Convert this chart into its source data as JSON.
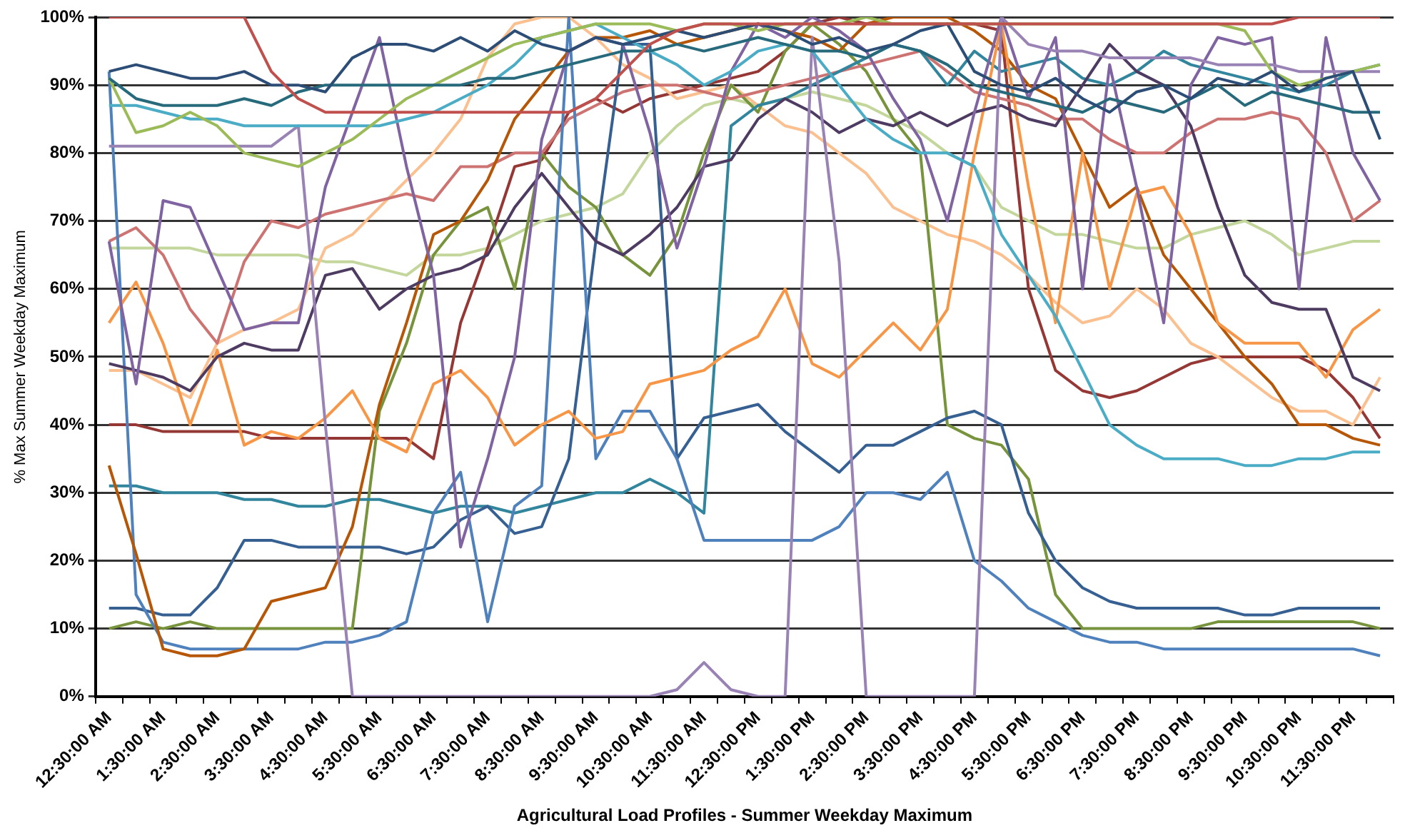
{
  "chart_data": {
    "type": "line",
    "xlabel": "Agricultural Load Profiles - Summer Weekday Maximum",
    "ylabel": "% Max Summer Weekday Maximum",
    "categories": [
      "12:30:00 AM",
      null,
      "1:30:00 AM",
      null,
      "2:30:00 AM",
      null,
      "3:30:00 AM",
      null,
      "4:30:00 AM",
      null,
      "5:30:00 AM",
      null,
      "6:30:00 AM",
      null,
      "7:30:00 AM",
      null,
      "8:30:00 AM",
      null,
      "9:30:00 AM",
      null,
      "10:30:00 AM",
      null,
      "11:30:00 AM",
      null,
      "12:30:00 PM",
      null,
      "1:30:00 PM",
      null,
      "2:30:00 PM",
      null,
      "3:30:00 PM",
      null,
      "4:30:00 PM",
      null,
      "5:30:00 PM",
      null,
      "6:30:00 PM",
      null,
      "7:30:00 PM",
      null,
      "8:30:00 PM",
      null,
      "9:30:00 PM",
      null,
      "10:30:00 PM",
      null,
      "11:30:00 PM",
      null
    ],
    "ylim": [
      0,
      100
    ],
    "yticks": [
      {
        "value": 0,
        "label": "0%"
      },
      {
        "value": 10,
        "label": "10%"
      },
      {
        "value": 20,
        "label": "20%"
      },
      {
        "value": 30,
        "label": "30%"
      },
      {
        "value": 40,
        "label": "40%"
      },
      {
        "value": 50,
        "label": "50%"
      },
      {
        "value": 60,
        "label": "60%"
      },
      {
        "value": 70,
        "label": "70%"
      },
      {
        "value": 80,
        "label": "80%"
      },
      {
        "value": 90,
        "label": "90%"
      },
      {
        "value": 100,
        "label": "100%"
      }
    ],
    "grid": "y",
    "marker": "none",
    "line_style": "solid",
    "series": [
      {
        "color": "#c0504d",
        "values": [
          100,
          100,
          100,
          100,
          100,
          100,
          92,
          88,
          86,
          86,
          86,
          86,
          86,
          86,
          86,
          86,
          86,
          86,
          88,
          92,
          96,
          98,
          99,
          99,
          99,
          99,
          99,
          99,
          99,
          99,
          99,
          99,
          99,
          99,
          99,
          99,
          99,
          99,
          99,
          99,
          99,
          99,
          99,
          99,
          100,
          100,
          100,
          100
        ]
      },
      {
        "color": "#2c4d75",
        "values": [
          92,
          93,
          92,
          91,
          91,
          92,
          90,
          90,
          89,
          94,
          96,
          96,
          95,
          97,
          95,
          98,
          96,
          95,
          97,
          96,
          97,
          98,
          97,
          98,
          99,
          98,
          96,
          97,
          95,
          96,
          98,
          99,
          92,
          90,
          89,
          91,
          88,
          86,
          89,
          90,
          88,
          91,
          90,
          92,
          89,
          91,
          92,
          82
        ]
      },
      {
        "color": "#276a7c",
        "values": [
          91,
          88,
          87,
          87,
          87,
          88,
          87,
          89,
          90,
          90,
          90,
          90,
          90,
          90,
          91,
          91,
          92,
          93,
          94,
          95,
          95,
          96,
          95,
          96,
          97,
          96,
          95,
          95,
          94,
          96,
          95,
          93,
          90,
          89,
          88,
          87,
          86,
          88,
          87,
          86,
          88,
          90,
          87,
          89,
          88,
          87,
          86,
          86
        ]
      },
      {
        "color": "#9bbb59",
        "values": [
          91,
          83,
          84,
          86,
          84,
          80,
          79,
          78,
          80,
          82,
          85,
          88,
          90,
          92,
          94,
          96,
          97,
          98,
          99,
          99,
          99,
          98,
          99,
          99,
          98,
          99,
          99,
          99,
          100,
          99,
          99,
          99,
          99,
          99,
          99,
          99,
          99,
          99,
          99,
          99,
          99,
          99,
          98,
          92,
          90,
          91,
          92,
          93
        ]
      },
      {
        "color": "#4bacc6",
        "values": [
          87,
          87,
          86,
          85,
          85,
          84,
          84,
          84,
          84,
          84,
          84,
          85,
          86,
          88,
          90,
          93,
          97,
          98,
          99,
          97,
          95,
          93,
          90,
          92,
          95,
          96,
          95,
          90,
          85,
          82,
          80,
          80,
          78,
          68,
          62,
          56,
          48,
          40,
          37,
          35,
          35,
          35,
          34,
          34,
          35,
          35,
          36,
          36
        ]
      },
      {
        "color": "#9983b5",
        "values": [
          81,
          81,
          81,
          81,
          81,
          81,
          81,
          84,
          40,
          0,
          0,
          0,
          0,
          0,
          0,
          0,
          0,
          0,
          0,
          0,
          0,
          1,
          5,
          1,
          0,
          0,
          97,
          64,
          0,
          0,
          0,
          0,
          0,
          100,
          96,
          95,
          95,
          94,
          94,
          94,
          94,
          93,
          93,
          93,
          92,
          92,
          92,
          92
        ]
      },
      {
        "color": "#8064a2",
        "values": [
          67,
          46,
          73,
          72,
          63,
          54,
          55,
          55,
          75,
          86,
          97,
          78,
          62,
          22,
          35,
          50,
          82,
          95,
          97,
          96,
          83,
          66,
          78,
          92,
          99,
          97,
          100,
          98,
          95,
          88,
          82,
          70,
          86,
          100,
          88,
          97,
          60,
          93,
          75,
          55,
          90,
          97,
          96,
          97,
          60,
          97,
          80,
          73
        ]
      },
      {
        "color": "#4d3b62",
        "values": [
          49,
          48,
          47,
          45,
          50,
          52,
          51,
          51,
          62,
          63,
          57,
          60,
          62,
          63,
          65,
          72,
          77,
          72,
          67,
          65,
          68,
          72,
          78,
          79,
          85,
          88,
          86,
          83,
          85,
          84,
          86,
          84,
          86,
          87,
          85,
          84,
          90,
          96,
          92,
          90,
          84,
          72,
          62,
          58,
          57,
          57,
          47,
          45
        ]
      },
      {
        "color": "#f79646",
        "values": [
          55,
          61,
          52,
          40,
          51,
          37,
          39,
          38,
          41,
          45,
          38,
          36,
          46,
          48,
          44,
          37,
          40,
          42,
          38,
          39,
          46,
          47,
          48,
          51,
          53,
          60,
          49,
          47,
          51,
          55,
          51,
          57,
          80,
          99,
          75,
          55,
          80,
          60,
          74,
          75,
          68,
          55,
          52,
          52,
          52,
          47,
          54,
          57
        ]
      },
      {
        "color": "#b65708",
        "values": [
          34,
          21,
          7,
          6,
          6,
          7,
          14,
          15,
          16,
          25,
          43,
          55,
          68,
          70,
          76,
          85,
          90,
          95,
          97,
          97,
          98,
          96,
          97,
          98,
          99,
          98,
          97,
          95,
          99,
          100,
          100,
          100,
          98,
          95,
          90,
          88,
          80,
          72,
          75,
          65,
          60,
          55,
          50,
          46,
          40,
          40,
          38,
          37
        ]
      },
      {
        "color": "#4f81bd",
        "values": [
          92,
          15,
          8,
          7,
          7,
          7,
          7,
          7,
          8,
          8,
          9,
          11,
          27,
          33,
          11,
          28,
          31,
          100,
          35,
          42,
          42,
          35,
          23,
          23,
          23,
          23,
          23,
          25,
          30,
          30,
          29,
          33,
          20,
          17,
          13,
          11,
          9,
          8,
          8,
          7,
          7,
          7,
          7,
          7,
          7,
          7,
          7,
          6
        ]
      },
      {
        "color": "#376092",
        "values": [
          13,
          13,
          12,
          12,
          16,
          23,
          23,
          22,
          22,
          22,
          22,
          21,
          22,
          26,
          28,
          24,
          25,
          35,
          67,
          96,
          96,
          35,
          41,
          42,
          43,
          39,
          36,
          33,
          37,
          37,
          39,
          41,
          42,
          40,
          27,
          20,
          16,
          14,
          13,
          13,
          13,
          13,
          12,
          12,
          13,
          13,
          13,
          13
        ]
      },
      {
        "color": "#31859c",
        "values": [
          31,
          31,
          30,
          30,
          30,
          29,
          29,
          28,
          28,
          29,
          29,
          28,
          27,
          28,
          28,
          27,
          28,
          29,
          30,
          30,
          32,
          30,
          27,
          84,
          87,
          88,
          90,
          92,
          94,
          96,
          95,
          90,
          95,
          92,
          93,
          94,
          91,
          90,
          92,
          95,
          93,
          92,
          91,
          90,
          89,
          90,
          92,
          93
        ]
      },
      {
        "color": "#cd7371",
        "values": [
          67,
          69,
          65,
          57,
          52,
          64,
          70,
          69,
          71,
          72,
          73,
          74,
          73,
          78,
          78,
          80,
          80,
          85,
          87,
          89,
          90,
          90,
          89,
          88,
          89,
          90,
          91,
          92,
          93,
          94,
          95,
          92,
          89,
          88,
          87,
          85,
          85,
          82,
          80,
          80,
          83,
          85,
          85,
          86,
          85,
          80,
          70,
          73
        ]
      },
      {
        "color": "#77933c",
        "values": [
          10,
          11,
          10,
          11,
          10,
          10,
          10,
          10,
          10,
          10,
          42,
          52,
          65,
          70,
          72,
          60,
          80,
          75,
          72,
          65,
          62,
          68,
          80,
          90,
          86,
          95,
          99,
          96,
          92,
          85,
          80,
          40,
          38,
          37,
          32,
          15,
          10,
          10,
          10,
          10,
          10,
          11,
          11,
          11,
          11,
          11,
          11,
          10
        ]
      },
      {
        "color": "#fac090",
        "values": [
          48,
          48,
          46,
          44,
          52,
          54,
          55,
          57,
          66,
          68,
          72,
          76,
          80,
          85,
          94,
          99,
          100,
          100,
          97,
          93,
          91,
          88,
          89,
          90,
          87,
          84,
          83,
          80,
          77,
          72,
          70,
          68,
          67,
          65,
          62,
          58,
          55,
          56,
          60,
          57,
          52,
          50,
          47,
          44,
          42,
          42,
          40,
          47
        ]
      },
      {
        "color": "#953735",
        "values": [
          40,
          40,
          39,
          39,
          39,
          39,
          38,
          38,
          38,
          38,
          38,
          38,
          35,
          55,
          66,
          78,
          79,
          86,
          88,
          86,
          88,
          89,
          90,
          91,
          92,
          95,
          99,
          100,
          99,
          99,
          99,
          99,
          99,
          98,
          60,
          48,
          45,
          44,
          45,
          47,
          49,
          50,
          50,
          50,
          50,
          48,
          44,
          38
        ]
      },
      {
        "color": "#c3d69b",
        "values": [
          66,
          66,
          66,
          66,
          65,
          65,
          65,
          65,
          64,
          64,
          63,
          62,
          65,
          65,
          66,
          68,
          70,
          71,
          72,
          74,
          80,
          84,
          87,
          88,
          87,
          88,
          89,
          88,
          87,
          85,
          83,
          80,
          78,
          72,
          70,
          68,
          68,
          67,
          66,
          66,
          68,
          69,
          70,
          68,
          65,
          66,
          67,
          67
        ]
      }
    ]
  }
}
